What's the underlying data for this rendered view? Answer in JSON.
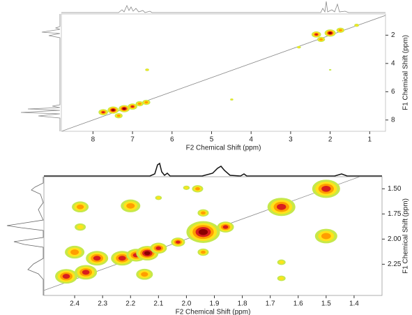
{
  "chart_data": [
    {
      "type": "contour",
      "x_label": "F2 Chemical Shift (ppm)",
      "y_label": "F1 Chemical Shift (ppm)",
      "xlim": [
        8.8,
        0.6
      ],
      "xticks": [
        8,
        7,
        6,
        5,
        4,
        3,
        2,
        1
      ],
      "ylim": [
        0.5,
        8.8
      ],
      "yticks": [
        2,
        4,
        6,
        8
      ],
      "contour_colors": [
        "#c6e84a",
        "#ffe31a",
        "#ff9d00",
        "#d81e1e",
        "#8a0000"
      ],
      "peaks": {
        "x": [
          7.74,
          7.49,
          7.35,
          7.21,
          7.0,
          6.82,
          6.65,
          6.63,
          2.79,
          2.35,
          2.23,
          2.0,
          1.74,
          1.33,
          4.49,
          2.0
        ],
        "y": [
          7.45,
          7.3,
          7.7,
          7.2,
          7.05,
          6.85,
          6.75,
          4.45,
          2.85,
          1.95,
          2.3,
          1.85,
          1.65,
          1.3,
          6.55,
          4.45
        ],
        "size": [
          0.12,
          0.14,
          0.1,
          0.14,
          0.12,
          0.1,
          0.1,
          0.05,
          0.05,
          0.12,
          0.1,
          0.14,
          0.1,
          0.06,
          0.04,
          0.03
        ],
        "levels": [
          4,
          5,
          3,
          5,
          4,
          3,
          3,
          2,
          2,
          4,
          3,
          5,
          3,
          2,
          2,
          1
        ]
      }
    },
    {
      "type": "contour",
      "x_label": "F2 Chemical Shift (ppm)",
      "y_label": "F1 Chemical Shift (ppm)",
      "xlim": [
        2.51,
        1.3
      ],
      "xticks": [
        2.4,
        2.3,
        2.2,
        2.1,
        {
          "value": 2,
          "label": "2.0"
        },
        1.9,
        1.8,
        1.7,
        1.6,
        1.5,
        1.4
      ],
      "ylim": [
        1.38,
        2.56
      ],
      "yticks": [
        {
          "value": 1.5,
          "label": "1.50"
        },
        {
          "value": 1.75,
          "label": "1.75"
        },
        {
          "value": 2,
          "label": "2.00"
        },
        {
          "value": 2.25,
          "label": "2.25"
        }
      ],
      "contour_colors": [
        "#c6e84a",
        "#ffe31a",
        "#ff9d00",
        "#d81e1e",
        "#8a0000"
      ],
      "peaks": {
        "x": [
          2.43,
          2.36,
          2.4,
          2.32,
          2.23,
          2.18,
          2.14,
          2.1,
          2.03,
          1.94,
          1.94,
          1.94,
          1.86,
          1.66,
          1.5,
          2.38,
          2.2,
          2.38,
          1.96,
          2.0,
          1.5,
          1.66,
          1.66,
          2.1,
          2.15
        ],
        "y": [
          2.37,
          2.33,
          2.13,
          2.19,
          2.19,
          2.16,
          2.14,
          2.09,
          2.03,
          1.93,
          1.74,
          2.13,
          1.88,
          1.68,
          1.5,
          1.68,
          1.67,
          1.88,
          1.5,
          1.49,
          1.97,
          2.39,
          2.23,
          1.59,
          2.35
        ],
        "size": [
          0.04,
          0.04,
          0.035,
          0.04,
          0.04,
          0.035,
          0.04,
          0.03,
          0.025,
          0.06,
          0.02,
          0.02,
          0.03,
          0.05,
          0.05,
          0.03,
          0.035,
          0.02,
          0.02,
          0.012,
          0.04,
          0.015,
          0.015,
          0.012,
          0.03
        ],
        "levels": [
          4,
          4,
          3,
          4,
          4,
          4,
          5,
          4,
          4,
          5,
          3,
          3,
          4,
          4,
          4,
          3,
          3,
          2,
          3,
          2,
          3,
          2,
          2,
          2,
          3
        ]
      }
    }
  ]
}
